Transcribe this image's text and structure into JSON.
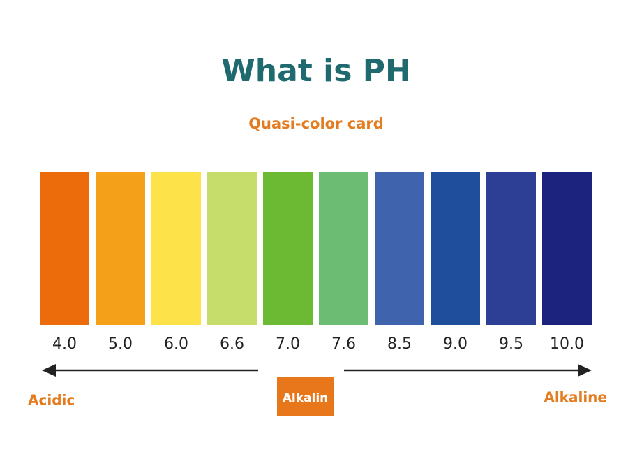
{
  "header": {
    "title": "What is PH",
    "subtitle": "Quasi-color card"
  },
  "swatches": [
    {
      "label": "4.0",
      "color": "#ec6c0c"
    },
    {
      "label": "5.0",
      "color": "#f4a018"
    },
    {
      "label": "6.0",
      "color": "#fde24a"
    },
    {
      "label": "6.6",
      "color": "#c6dd6c"
    },
    {
      "label": "7.0",
      "color": "#6cba34"
    },
    {
      "label": "7.6",
      "color": "#6cbc74"
    },
    {
      "label": "8.5",
      "color": "#3f63ad"
    },
    {
      "label": "9.0",
      "color": "#1f4f9c"
    },
    {
      "label": "9.5",
      "color": "#2d3f94"
    },
    {
      "label": "10.0",
      "color": "#1c237e"
    }
  ],
  "scale": {
    "left": "Acidic",
    "middle": "Alkalin",
    "right": "Alkaline"
  }
}
